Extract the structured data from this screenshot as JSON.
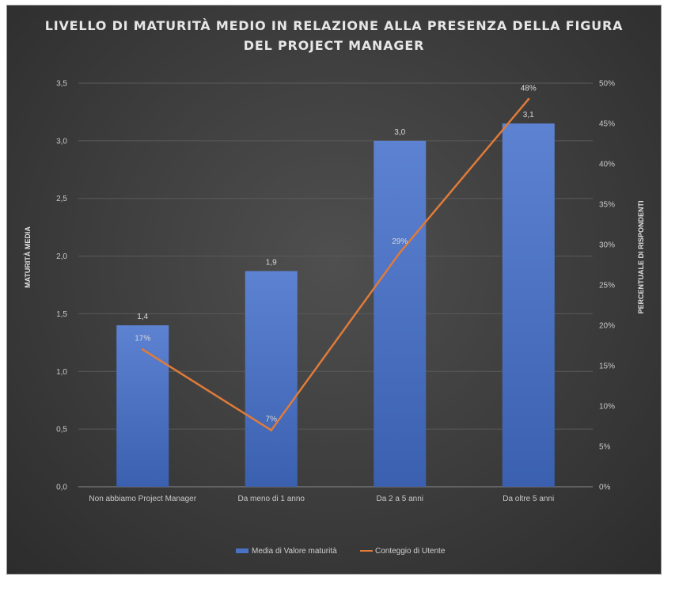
{
  "chart_data": {
    "type": "bar+line",
    "title_lines": [
      "LIVELLO DI MATURITÀ MEDIO IN RELAZIONE ALLA PRESENZA DELLA FIGURA",
      "DEL PROJECT MANAGER"
    ],
    "categories": [
      "Non abbiamo Project Manager",
      "Da meno di 1 anno",
      "Da 2 a 5 anni",
      "Da oltre 5 anni"
    ],
    "series": [
      {
        "name": "Media di Valore maturità",
        "kind": "bar",
        "axis": "left",
        "values": [
          1.4,
          1.87,
          3.0,
          3.15
        ],
        "labels": [
          "1,4",
          "1,9",
          "3,0",
          "3,1"
        ]
      },
      {
        "name": "Conteggio di Utente",
        "kind": "line",
        "axis": "right",
        "values": [
          17,
          7,
          29,
          48
        ],
        "labels": [
          "17%",
          "7%",
          "29%",
          "48%"
        ]
      }
    ],
    "ylabel": "MATURITÀ MEDIA",
    "ylabel_right": "PERCENTUALE DI RISPONDENTI",
    "ylim": [
      0,
      3.5
    ],
    "ylim_right": [
      0,
      50
    ],
    "yticks": [
      "0,0",
      "0,5",
      "1,0",
      "1,5",
      "2,0",
      "2,5",
      "3,0",
      "3,5"
    ],
    "yticks_right": [
      "0%",
      "5%",
      "10%",
      "15%",
      "20%",
      "25%",
      "30%",
      "35%",
      "40%",
      "45%",
      "50%"
    ],
    "grid": true,
    "legend_position": "bottom",
    "colors": {
      "bar": "#4a72c4",
      "line": "#e07b39"
    }
  }
}
